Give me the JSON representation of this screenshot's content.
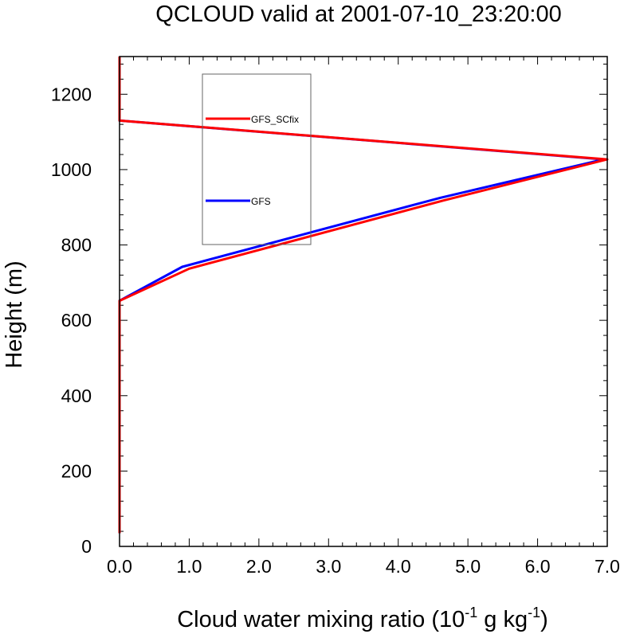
{
  "chart_data": {
    "type": "line",
    "title": "QCLOUD valid at 2001-07-10_23:20:00",
    "xlabel": {
      "main": "Cloud water mixing ratio (10",
      "exp1": "-1",
      "mid": " g kg",
      "exp2": "-1",
      "end": ")"
    },
    "ylabel": "Height (m)",
    "xlim": [
      0,
      7
    ],
    "ylim": [
      0,
      1300
    ],
    "x_ticks": [
      0,
      1,
      2,
      3,
      4,
      5,
      6,
      7
    ],
    "x_tick_labels": [
      "0.0",
      "1.0",
      "2.0",
      "3.0",
      "4.0",
      "5.0",
      "6.0",
      "7.0"
    ],
    "y_ticks": [
      0,
      200,
      400,
      600,
      800,
      1000,
      1200
    ],
    "y_tick_labels": [
      "0",
      "200",
      "400",
      "600",
      "800",
      "1000",
      "1200"
    ],
    "legend_placement": "upper-left, inside plot",
    "series": [
      {
        "name": "GFS",
        "color": "#0000ff",
        "points": [
          [
            0,
            35
          ],
          [
            0,
            652
          ],
          [
            0.9,
            742
          ],
          [
            4.6,
            925
          ],
          [
            6.95,
            1027
          ],
          [
            0,
            1130
          ],
          [
            0,
            1300
          ]
        ]
      },
      {
        "name": "GFS_SCfix",
        "color": "#ff0000",
        "points": [
          [
            0,
            35
          ],
          [
            0,
            652
          ],
          [
            1.0,
            737
          ],
          [
            4.65,
            918
          ],
          [
            7.0,
            1027
          ],
          [
            0,
            1130
          ],
          [
            0,
            1300
          ]
        ]
      }
    ],
    "legend": [
      {
        "name": "GFS_SCfix",
        "color": "#ff0000"
      },
      {
        "name": "GFS",
        "color": "#0000ff"
      }
    ]
  }
}
